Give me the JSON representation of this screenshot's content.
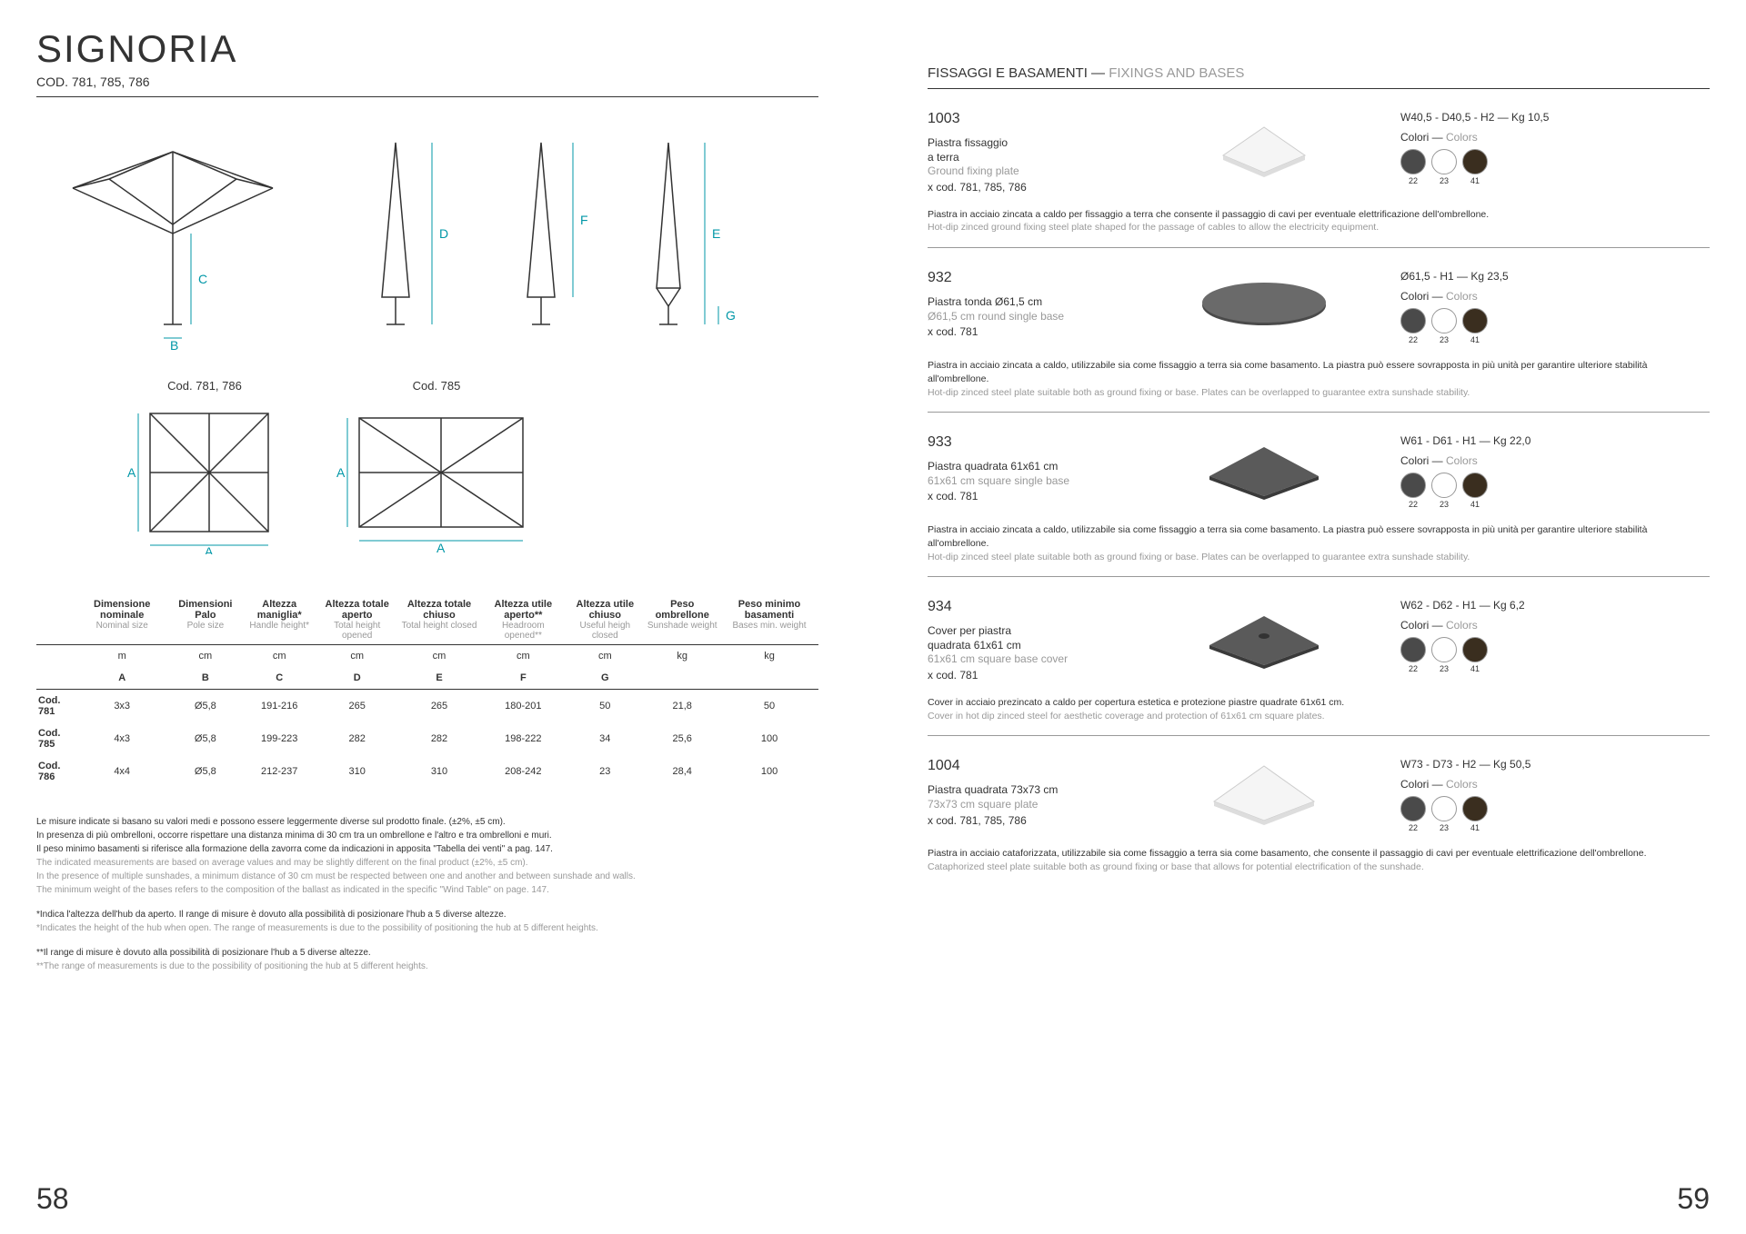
{
  "left": {
    "title": "SIGNORIA",
    "subtitle": "COD. 781, 785, 786",
    "topviews": [
      {
        "label": "Cod. 781, 786"
      },
      {
        "label": "Cod. 785"
      }
    ],
    "table": {
      "headers": [
        {
          "it": "",
          "en": ""
        },
        {
          "it": "Dimensione nominale",
          "en": "Nominal size"
        },
        {
          "it": "Dimensioni Palo",
          "en": "Pole size"
        },
        {
          "it": "Altezza maniglia*",
          "en": "Handle height*"
        },
        {
          "it": "Altezza totale aperto",
          "en": "Total height opened"
        },
        {
          "it": "Altezza totale chiuso",
          "en": "Total height closed"
        },
        {
          "it": "Altezza utile aperto**",
          "en": "Headroom opened**"
        },
        {
          "it": "Altezza utile chiuso",
          "en": "Useful heigh closed"
        },
        {
          "it": "Peso ombrellone",
          "en": "Sunshade weight"
        },
        {
          "it": "Peso minimo basamenti",
          "en": "Bases min. weight"
        }
      ],
      "units": [
        "",
        "m",
        "cm",
        "cm",
        "cm",
        "cm",
        "cm",
        "cm",
        "kg",
        "kg"
      ],
      "letters": [
        "",
        "A",
        "B",
        "C",
        "D",
        "E",
        "F",
        "G",
        "",
        ""
      ],
      "rows": [
        [
          "Cod. 781",
          "3x3",
          "Ø5,8",
          "191-216",
          "265",
          "265",
          "180-201",
          "50",
          "21,8",
          "50"
        ],
        [
          "Cod. 785",
          "4x3",
          "Ø5,8",
          "199-223",
          "282",
          "282",
          "198-222",
          "34",
          "25,6",
          "100"
        ],
        [
          "Cod. 786",
          "4x4",
          "Ø5,8",
          "212-237",
          "310",
          "310",
          "208-242",
          "23",
          "28,4",
          "100"
        ]
      ]
    },
    "notes": [
      {
        "it": "Le misure indicate si basano su valori medi e possono essere leggermente diverse sul prodotto finale. (±2%, ±5 cm).\nIn presenza di più ombrelloni, occorre rispettare una distanza minima di 30 cm tra un ombrellone e l'altro e tra ombrelloni e muri.\nIl peso minimo basamenti si riferisce alla formazione della zavorra come da indicazioni in apposita \"Tabella dei venti\" a pag. 147.",
        "en": "The indicated measurements are based on average values and may be slightly different on the final product (±2%, ±5 cm).\nIn the presence of multiple sunshades, a minimum distance of 30 cm must be respected between one and another and between sunshade and walls.\nThe minimum weight of the bases refers to the composition of the ballast as indicated in the specific \"Wind Table\" on page. 147."
      },
      {
        "it": "*Indica l'altezza dell'hub da aperto. Il range di misure è dovuto alla possibilità di posizionare l'hub a 5 diverse altezze.",
        "en": "*Indicates the height of the hub when open. The range of measurements is due to the possibility of positioning the hub at 5 different heights."
      },
      {
        "it": "**Il range di misure è dovuto alla possibilità di posizionare l'hub a 5 diverse altezze.",
        "en": "**The range of measurements is due to the possibility of positioning the hub at 5 different heights."
      }
    ],
    "pageNum": "58"
  },
  "right": {
    "title_it": "FISSAGGI E BASAMENTI",
    "title_en": "FIXINGS AND BASES",
    "colori_it": "Colori",
    "colori_en": "Colors",
    "swatches": [
      {
        "color": "#4a4a4a",
        "num": "22"
      },
      {
        "color": "#ffffff",
        "num": "23"
      },
      {
        "color": "#3a2e1f",
        "num": "41"
      }
    ],
    "items": [
      {
        "code": "1003",
        "name_it": "Piastra fissaggio\na terra",
        "name_en": "Ground fixing plate",
        "xcod": "x cod. 781, 785, 786",
        "dims": "W40,5 - D40,5 - H2 — Kg 10,5",
        "shape": "plate-white",
        "desc_it": "Piastra in acciaio zincata a caldo per fissaggio a terra che consente il passaggio di cavi per eventuale elettrificazione dell'ombrellone.",
        "desc_en": "Hot-dip zinced ground fixing steel plate shaped for the passage of cables to allow the electricity equipment."
      },
      {
        "code": "932",
        "name_it": "Piastra tonda Ø61,5 cm",
        "name_en": "Ø61,5 cm round single base",
        "xcod": "x cod. 781",
        "dims": "Ø61,5 - H1 — Kg 23,5",
        "shape": "plate-round",
        "desc_it": "Piastra in acciaio zincata a caldo, utilizzabile sia come fissaggio a terra sia come basamento. La piastra può essere sovrapposta in più unità per garantire ulteriore stabilità all'ombrellone.",
        "desc_en": "Hot-dip zinced steel plate suitable both as ground fixing or base. Plates can be overlapped to guarantee extra sunshade stability."
      },
      {
        "code": "933",
        "name_it": "Piastra quadrata 61x61 cm",
        "name_en": "61x61 cm square single base",
        "xcod": "x cod. 781",
        "dims": "W61 - D61 - H1 — Kg 22,0",
        "shape": "plate-dark",
        "desc_it": "Piastra in acciaio zincata a caldo, utilizzabile sia come fissaggio a terra sia come basamento. La piastra può essere sovrapposta in più unità per garantire ulteriore stabilità all'ombrellone.",
        "desc_en": "Hot-dip zinced steel plate suitable both as ground fixing or base. Plates can be overlapped to guarantee extra sunshade stability."
      },
      {
        "code": "934",
        "name_it": "Cover per piastra\nquadrata 61x61 cm",
        "name_en": "61x61 cm square base cover",
        "xcod": "x cod. 781",
        "dims": "W62 - D62 - H1 — Kg 6,2",
        "shape": "plate-dark-hole",
        "desc_it": "Cover in acciaio prezincato a caldo per copertura estetica e protezione piastre quadrate 61x61 cm.",
        "desc_en": "Cover in hot dip zinced steel for aesthetic coverage and protection of 61x61 cm square plates."
      },
      {
        "code": "1004",
        "name_it": "Piastra quadrata 73x73 cm",
        "name_en": "73x73 cm square plate",
        "xcod": "x cod. 781, 785, 786",
        "dims": "W73 - D73 - H2 — Kg 50,5",
        "shape": "plate-white-large",
        "desc_it": "Piastra in acciaio cataforizzata, utilizzabile sia come fissaggio a terra sia come basamento, che consente il passaggio di cavi per eventuale elettrificazione dell'ombrellone.",
        "desc_en": "Cataphorized steel plate suitable both as ground fixing or base that allows for potential electrification of the sunshade."
      }
    ],
    "pageNum": "59"
  },
  "labels": {
    "A": "A",
    "B": "B",
    "C": "C",
    "D": "D",
    "E": "E",
    "F": "F",
    "G": "G"
  },
  "colors": {
    "teal": "#0097a7"
  }
}
